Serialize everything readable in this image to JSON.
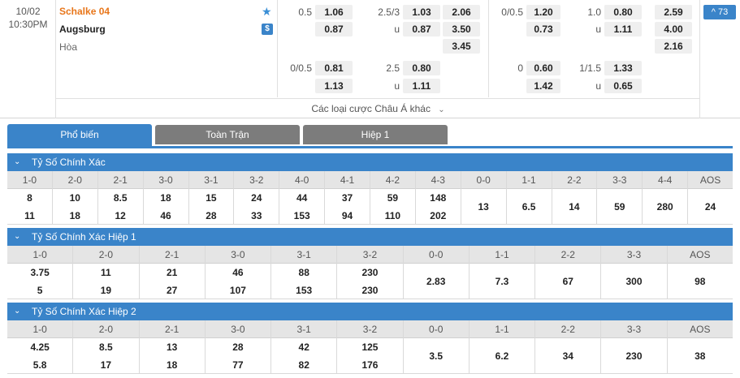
{
  "match": {
    "date": "10/02",
    "time": "10:30PM",
    "home": "Schalke 04",
    "away": "Augsburg",
    "draw": "Hòa",
    "more_count": "^ 73",
    "more_bets": "Các loại cược Châu Á khác"
  },
  "full_time": {
    "hdp_line_1": "0.5",
    "hdp_home_1": "1.06",
    "hdp_away_1": "0.87",
    "ou_line_1": "2.5/3",
    "ou_over_1": "1.03",
    "ou_u_1": "u",
    "ou_under_1": "0.87",
    "x12_home": "2.06",
    "x12_away": "3.50",
    "x12_draw": "3.45",
    "hdp_line_2": "0/0.5",
    "hdp_home_2": "0.81",
    "hdp_away_2": "1.13",
    "ou_line_2": "2.5",
    "ou_over_2": "0.80",
    "ou_u_2": "u",
    "ou_under_2": "1.11"
  },
  "first_half": {
    "hdp_line_1": "0/0.5",
    "hdp_home_1": "1.20",
    "hdp_away_1": "0.73",
    "ou_line_1": "1.0",
    "ou_over_1": "0.80",
    "ou_u_1": "u",
    "ou_under_1": "1.11",
    "x12_home": "2.59",
    "x12_away": "4.00",
    "x12_draw": "2.16",
    "hdp_line_2": "0",
    "hdp_home_2": "0.60",
    "hdp_away_2": "1.42",
    "ou_line_2": "1/1.5",
    "ou_over_2": "1.33",
    "ou_u_2": "u",
    "ou_under_2": "0.65"
  },
  "tabs": [
    "Phổ biến",
    "Toàn Trận",
    "Hiệp 1"
  ],
  "sections": [
    {
      "title": "Tỷ Số Chính Xác",
      "columns": [
        {
          "h": "1-0",
          "a": "8",
          "b": "11"
        },
        {
          "h": "2-0",
          "a": "10",
          "b": "18"
        },
        {
          "h": "2-1",
          "a": "8.5",
          "b": "12"
        },
        {
          "h": "3-0",
          "a": "18",
          "b": "46"
        },
        {
          "h": "3-1",
          "a": "15",
          "b": "28"
        },
        {
          "h": "3-2",
          "a": "24",
          "b": "33"
        },
        {
          "h": "4-0",
          "a": "44",
          "b": "153"
        },
        {
          "h": "4-1",
          "a": "37",
          "b": "94"
        },
        {
          "h": "4-2",
          "a": "59",
          "b": "110"
        },
        {
          "h": "4-3",
          "a": "148",
          "b": "202"
        },
        {
          "h": "0-0",
          "a": "13"
        },
        {
          "h": "1-1",
          "a": "6.5"
        },
        {
          "h": "2-2",
          "a": "14"
        },
        {
          "h": "3-3",
          "a": "59"
        },
        {
          "h": "4-4",
          "a": "280"
        },
        {
          "h": "AOS",
          "a": "24"
        }
      ]
    },
    {
      "title": "Tỷ Số Chính Xác Hiệp 1",
      "columns": [
        {
          "h": "1-0",
          "a": "3.75",
          "b": "5"
        },
        {
          "h": "2-0",
          "a": "11",
          "b": "19"
        },
        {
          "h": "2-1",
          "a": "21",
          "b": "27"
        },
        {
          "h": "3-0",
          "a": "46",
          "b": "107"
        },
        {
          "h": "3-1",
          "a": "88",
          "b": "153"
        },
        {
          "h": "3-2",
          "a": "230",
          "b": "230"
        },
        {
          "h": "0-0",
          "a": "2.83"
        },
        {
          "h": "1-1",
          "a": "7.3"
        },
        {
          "h": "2-2",
          "a": "67"
        },
        {
          "h": "3-3",
          "a": "300"
        },
        {
          "h": "AOS",
          "a": "98"
        }
      ]
    },
    {
      "title": "Tỷ Số Chính Xác Hiệp 2",
      "columns": [
        {
          "h": "1-0",
          "a": "4.25",
          "b": "5.8"
        },
        {
          "h": "2-0",
          "a": "8.5",
          "b": "17"
        },
        {
          "h": "2-1",
          "a": "13",
          "b": "18"
        },
        {
          "h": "3-0",
          "a": "28",
          "b": "77"
        },
        {
          "h": "3-1",
          "a": "42",
          "b": "82"
        },
        {
          "h": "3-2",
          "a": "125",
          "b": "176"
        },
        {
          "h": "0-0",
          "a": "3.5"
        },
        {
          "h": "1-1",
          "a": "6.2"
        },
        {
          "h": "2-2",
          "a": "34"
        },
        {
          "h": "3-3",
          "a": "230"
        },
        {
          "h": "AOS",
          "a": "38"
        }
      ]
    }
  ]
}
